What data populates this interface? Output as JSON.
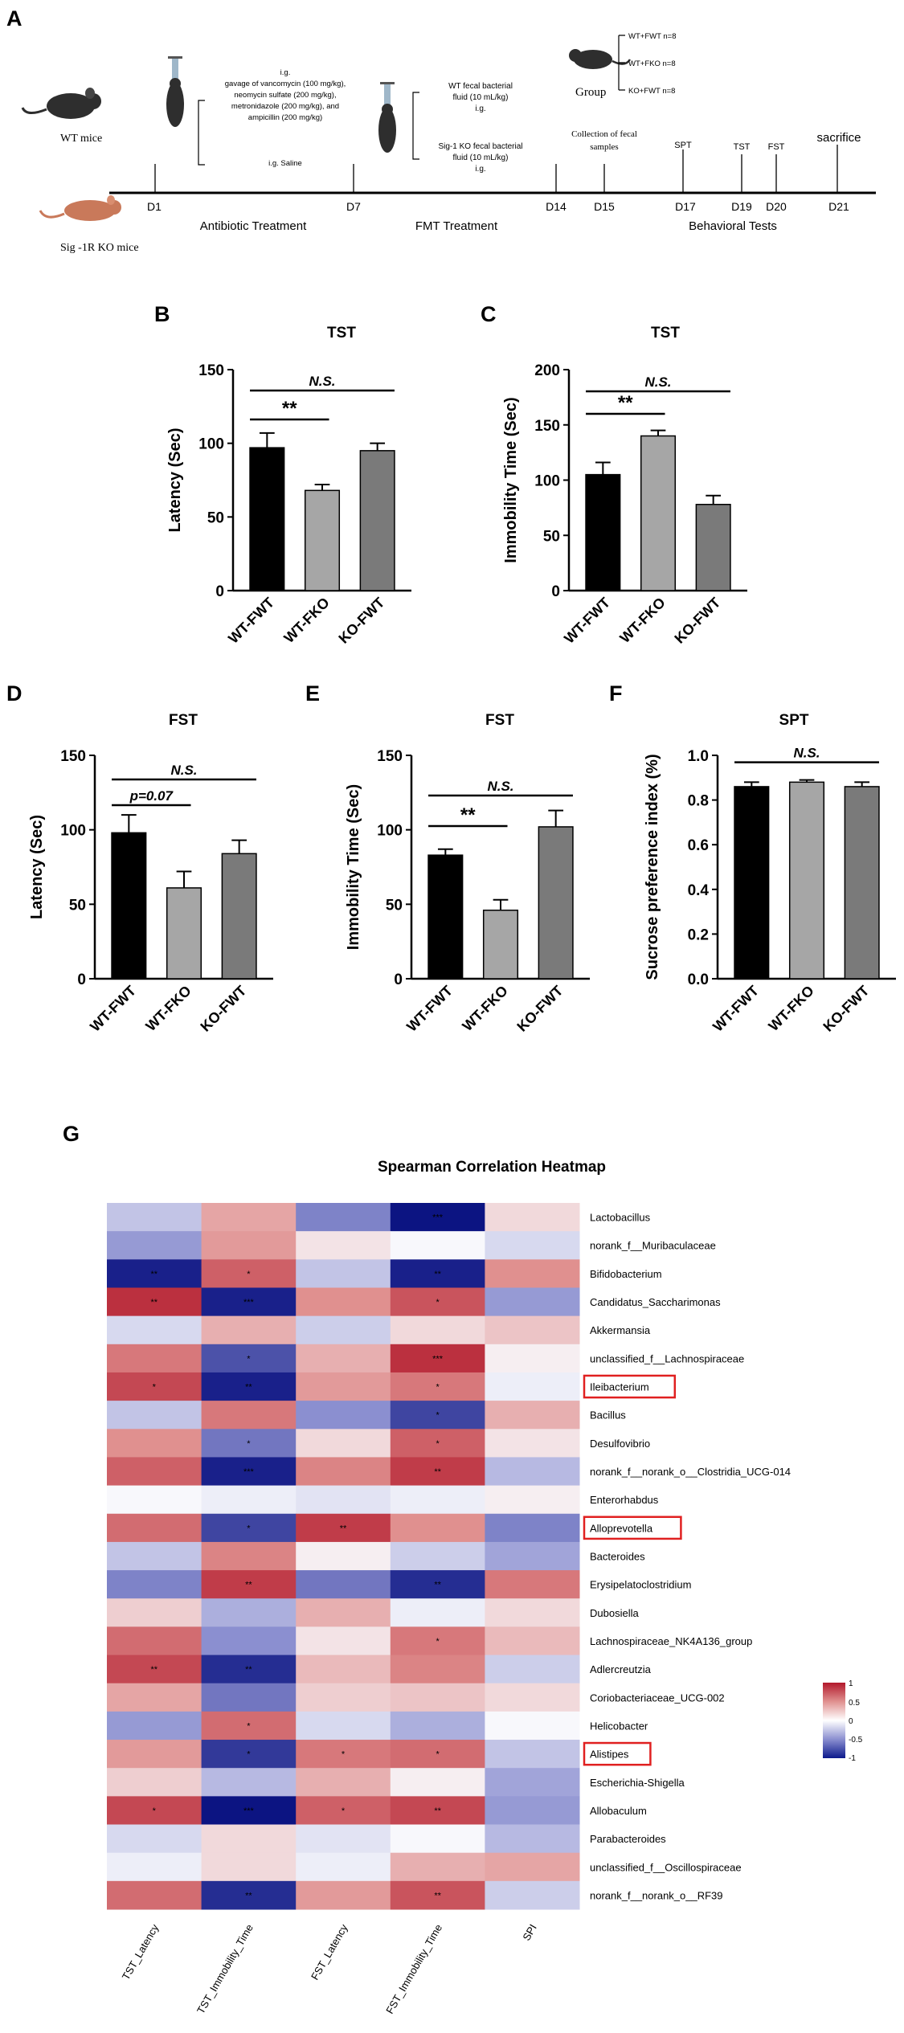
{
  "panel_a": {
    "letter": "A",
    "wt_mice": "WT mice",
    "ko_mice": "Sig -1R KO mice",
    "abx_lines": [
      "i.g.",
      "gavage of vancomycin (100 mg/kg),",
      "neomycin sulfate (200 mg/kg),",
      "metronidazole (200 mg/kg), and",
      "ampicillin (200 mg/kg)"
    ],
    "saline": "i.g. Saline",
    "fmt_wt_lines": [
      "WT fecal bacterial",
      "fluid (10 mL/kg)",
      "i.g."
    ],
    "fmt_ko_lines": [
      "Sig-1 KO fecal bacterial",
      "fluid (10 mL/kg)",
      "i.g."
    ],
    "group_label": "Group",
    "groups": [
      "WT+FWT  n=8",
      "WT+FKO  n=8",
      "KO+FWT  n=8"
    ],
    "collection_lines": [
      "Collection of fecal",
      "samples"
    ],
    "events": [
      {
        "label": "SPT",
        "day": "D17"
      },
      {
        "label": "TST",
        "day": "D19"
      },
      {
        "label": "FST",
        "day": "D20"
      },
      {
        "label": "sacrifice",
        "day": "D21"
      }
    ],
    "days": [
      "D1",
      "D7",
      "D14",
      "D15"
    ],
    "phases": [
      "Antibiotic Treatment",
      "FMT Treatment",
      "Behavioral Tests"
    ]
  },
  "colors": {
    "bar1": "#000000",
    "bar2": "#a6a6a6",
    "bar3": "#7a7a7a"
  },
  "heatmap_legend": {
    "ticks": [
      "1",
      "0.5",
      "0",
      "-0.5",
      "-1"
    ]
  },
  "chart_data": [
    {
      "panel": "B",
      "type": "bar",
      "title": "TST",
      "ylabel": "Latency (Sec)",
      "categories": [
        "WT-FWT",
        "WT-FKO",
        "KO-FWT"
      ],
      "values": [
        97,
        68,
        95
      ],
      "errors": [
        10,
        4,
        5
      ],
      "ylim": [
        0,
        150
      ],
      "yticks": [
        "0",
        "50",
        "100",
        "150"
      ],
      "annotations": [
        {
          "text": "**",
          "from": 0,
          "to": 1
        },
        {
          "text": "N.S.",
          "from": 0,
          "to": 2
        }
      ]
    },
    {
      "panel": "C",
      "type": "bar",
      "title": "TST",
      "ylabel": "Immobility Time (Sec)",
      "categories": [
        "WT-FWT",
        "WT-FKO",
        "KO-FWT"
      ],
      "values": [
        105,
        140,
        78
      ],
      "errors": [
        11,
        5,
        8
      ],
      "ylim": [
        0,
        200
      ],
      "yticks": [
        "0",
        "50",
        "100",
        "150",
        "200"
      ],
      "annotations": [
        {
          "text": "**",
          "from": 0,
          "to": 1
        },
        {
          "text": "N.S.",
          "from": 0,
          "to": 2
        }
      ]
    },
    {
      "panel": "D",
      "type": "bar",
      "title": "FST",
      "ylabel": "Latency (Sec)",
      "categories": [
        "WT-FWT",
        "WT-FKO",
        "KO-FWT"
      ],
      "values": [
        98,
        61,
        84
      ],
      "errors": [
        12,
        11,
        9
      ],
      "ylim": [
        0,
        150
      ],
      "yticks": [
        "0",
        "50",
        "100",
        "150"
      ],
      "annotations": [
        {
          "text": "p=0.07",
          "from": 0,
          "to": 1
        },
        {
          "text": "N.S.",
          "from": 0,
          "to": 2
        }
      ]
    },
    {
      "panel": "E",
      "type": "bar",
      "title": "FST",
      "ylabel": "Immobility Time (Sec)",
      "categories": [
        "WT-FWT",
        "WT-FKO",
        "KO-FWT"
      ],
      "values": [
        83,
        46,
        102
      ],
      "errors": [
        4,
        7,
        11
      ],
      "ylim": [
        0,
        150
      ],
      "yticks": [
        "0",
        "50",
        "100",
        "150"
      ],
      "annotations": [
        {
          "text": "**",
          "from": 0,
          "to": 1
        },
        {
          "text": "N.S.",
          "from": 0,
          "to": 2
        }
      ]
    },
    {
      "panel": "F",
      "type": "bar",
      "title": "SPT",
      "ylabel": "Sucrose preference index (%)",
      "categories": [
        "WT-FWT",
        "WT-FKO",
        "KO-FWT"
      ],
      "values": [
        0.86,
        0.88,
        0.86
      ],
      "errors": [
        0.02,
        0.01,
        0.02
      ],
      "ylim": [
        0,
        1.0
      ],
      "yticks": [
        "0.0",
        "0.2",
        "0.4",
        "0.6",
        "0.8",
        "1.0"
      ],
      "annotations": [
        {
          "text": "N.S.",
          "from": 0,
          "to": 2
        }
      ]
    },
    {
      "panel": "G",
      "type": "heatmap",
      "title": "Spearman Correlation Heatmap",
      "columns": [
        "TST_Latency",
        "TST_Immobility_Time",
        "FST_Latency",
        "FST_Immobility_Time",
        "SPI"
      ],
      "rows": [
        "Lactobacillus",
        "norank_f__Muribaculaceae",
        "Bifidobacterium",
        "Candidatus_Saccharimonas",
        "Akkermansia",
        "unclassified_f__Lachnospiraceae",
        "Ileibacterium",
        "Bacillus",
        "Desulfovibrio",
        "norank_f__norank_o__Clostridia_UCG-014",
        "Enterorhabdus",
        "Alloprevotella",
        "Bacteroides",
        "Erysipelatoclostridium",
        "Dubosiella",
        "Lachnospiraceae_NK4A136_group",
        "Adlercreutzia",
        "Coriobacteriaceae_UCG-002",
        "Helicobacter",
        "Alistipes",
        "Escherichia-Shigella",
        "Allobaculum",
        "Parabacteroides",
        "unclassified_f__Oscillospiraceae",
        "norank_f__norank_o__RF39"
      ],
      "highlighted": [
        "Ileibacterium",
        "Alloprevotella",
        "Alistipes"
      ],
      "values": [
        [
          -0.25,
          0.4,
          -0.55,
          -1.0,
          0.15
        ],
        [
          -0.45,
          0.45,
          0.1,
          0.0,
          -0.15
        ],
        [
          -0.95,
          0.7,
          -0.25,
          -0.95,
          0.5
        ],
        [
          0.9,
          -0.95,
          0.5,
          0.75,
          -0.45
        ],
        [
          -0.15,
          0.35,
          -0.2,
          0.15,
          0.25
        ],
        [
          0.6,
          -0.75,
          0.35,
          0.9,
          0.05
        ],
        [
          0.8,
          -0.95,
          0.45,
          0.6,
          -0.05
        ],
        [
          -0.25,
          0.6,
          -0.5,
          -0.8,
          0.35
        ],
        [
          0.5,
          -0.6,
          0.15,
          0.7,
          0.1
        ],
        [
          0.7,
          -0.95,
          0.55,
          0.85,
          -0.3
        ],
        [
          0.0,
          -0.05,
          -0.1,
          -0.05,
          0.05
        ],
        [
          0.65,
          -0.8,
          0.85,
          0.5,
          -0.55
        ],
        [
          -0.25,
          0.55,
          0.05,
          -0.2,
          -0.4
        ],
        [
          -0.55,
          0.85,
          -0.6,
          -0.9,
          0.6
        ],
        [
          0.2,
          -0.35,
          0.35,
          -0.05,
          0.15
        ],
        [
          0.65,
          -0.5,
          0.1,
          0.6,
          0.3
        ],
        [
          0.8,
          -0.9,
          0.3,
          0.55,
          -0.2
        ],
        [
          0.4,
          -0.6,
          0.2,
          0.25,
          0.15
        ],
        [
          -0.45,
          0.65,
          -0.15,
          -0.35,
          0.0
        ],
        [
          0.45,
          -0.85,
          0.6,
          0.65,
          -0.25
        ],
        [
          0.2,
          -0.3,
          0.35,
          0.05,
          -0.4
        ],
        [
          0.8,
          -1.0,
          0.7,
          0.8,
          -0.45
        ],
        [
          -0.15,
          0.15,
          -0.1,
          0.0,
          -0.3
        ],
        [
          -0.05,
          0.15,
          -0.05,
          0.35,
          0.4
        ],
        [
          0.65,
          -0.9,
          0.45,
          0.75,
          -0.2
        ]
      ],
      "significance": [
        [
          "",
          "",
          "",
          "***",
          ""
        ],
        [
          "",
          "",
          "",
          "",
          ""
        ],
        [
          "**",
          "*",
          "",
          "**",
          ""
        ],
        [
          "**",
          "***",
          "",
          "*",
          ""
        ],
        [
          "",
          "",
          "",
          "",
          ""
        ],
        [
          "",
          "*",
          "",
          "***",
          ""
        ],
        [
          "*",
          "**",
          "",
          "*",
          ""
        ],
        [
          "",
          "",
          "",
          "*",
          ""
        ],
        [
          "",
          "*",
          "",
          "*",
          ""
        ],
        [
          "",
          "***",
          "",
          "**",
          ""
        ],
        [
          "",
          "",
          "",
          "",
          ""
        ],
        [
          "",
          "*",
          "**",
          "",
          ""
        ],
        [
          "",
          "",
          "",
          "",
          ""
        ],
        [
          "",
          "**",
          "",
          "**",
          ""
        ],
        [
          "",
          "",
          "",
          "",
          ""
        ],
        [
          "",
          "",
          "",
          "*",
          ""
        ],
        [
          "**",
          "**",
          "",
          "",
          ""
        ],
        [
          "",
          "",
          "",
          "",
          ""
        ],
        [
          "",
          "*",
          "",
          "",
          ""
        ],
        [
          "",
          "*",
          "*",
          "*",
          ""
        ],
        [
          "",
          "",
          "",
          "",
          ""
        ],
        [
          "*",
          "***",
          "*",
          "**",
          ""
        ],
        [
          "",
          "",
          "",
          "",
          ""
        ],
        [
          "",
          "",
          "",
          "",
          ""
        ],
        [
          "",
          "**",
          "",
          "**",
          ""
        ]
      ]
    }
  ]
}
